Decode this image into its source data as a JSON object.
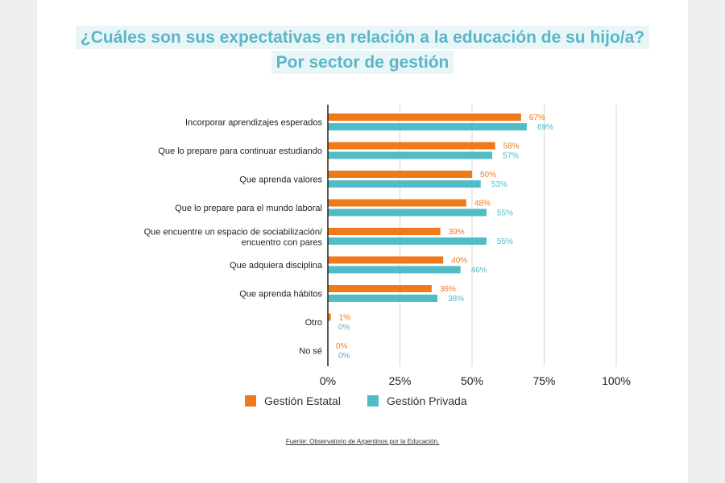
{
  "title": {
    "line1": "¿Cuáles son sus expectativas en relación a la educación de su hijo/a?",
    "line2": "Por sector de gestión"
  },
  "source": "Fuente: Observatorio de Argentinos por la Educación.",
  "colors": {
    "estatal": "#f07a1a",
    "privada": "#4fbcc6",
    "title": "#5bb6c6"
  },
  "chart_data": {
    "type": "bar",
    "orientation": "horizontal",
    "categories": [
      [
        "Incorporar aprendizajes esperados"
      ],
      [
        "Que lo prepare para continuar estudiando"
      ],
      [
        "Que aprenda valores"
      ],
      [
        "Que lo prepare para el mundo laboral"
      ],
      [
        "Que encuentre un espacio de sociabilización/",
        "encuentro con pares"
      ],
      [
        "Que adquiera disciplina"
      ],
      [
        "Que aprenda hábitos"
      ],
      [
        "Otro"
      ],
      [
        "No sé"
      ]
    ],
    "series": [
      {
        "name": "Gestión Estatal",
        "color": "#f07a1a",
        "values": [
          67,
          58,
          50,
          48,
          39,
          40,
          36,
          1,
          0
        ],
        "labels": [
          "67%",
          "58%",
          "50%",
          "48%",
          "39%",
          "40%",
          "36%",
          "1%",
          "0%"
        ]
      },
      {
        "name": "Gestión Privada",
        "color": "#4fbcc6",
        "values": [
          69,
          57,
          53,
          55,
          55,
          46,
          38,
          0,
          0
        ],
        "labels": [
          "69%",
          "57%",
          "53%",
          "55%",
          "55%",
          "46%",
          "38%",
          "0%",
          "0%"
        ]
      }
    ],
    "xlim": [
      0,
      100
    ],
    "xticks": [
      "0%",
      "25%",
      "50%",
      "75%",
      "100%"
    ],
    "xtick_values": [
      0,
      25,
      50,
      75,
      100
    ],
    "grid": true,
    "legend_position": "bottom"
  }
}
